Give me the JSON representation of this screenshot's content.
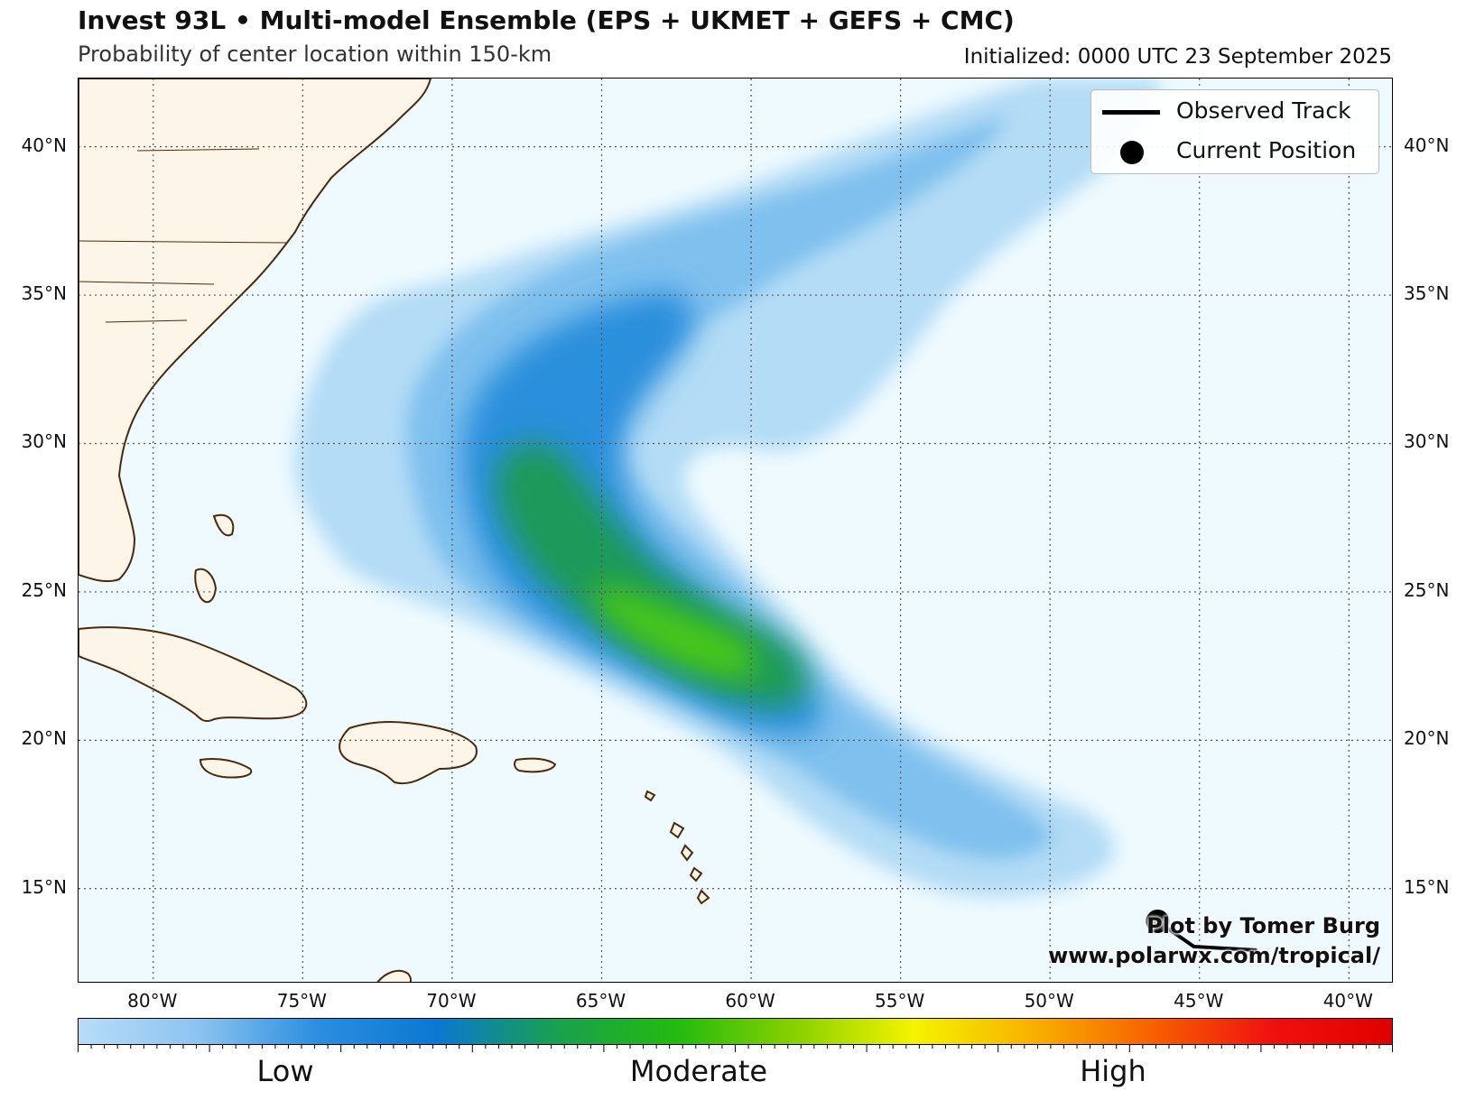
{
  "title": "Invest 93L • Multi-model Ensemble (EPS + UKMET + GEFS + CMC)",
  "subtitle": "Probability of center location within 150-km",
  "initialized": "Initialized: 0000 UTC 23 September 2025",
  "legend": {
    "observed_track": "Observed Track",
    "current_position": "Current Position"
  },
  "credit": {
    "line1": "Plot by Tomer Burg",
    "line2": "www.polarwx.com/tropical/"
  },
  "map": {
    "lon_range": [
      -82.5,
      -38.5
    ],
    "lat_range": [
      11.8,
      42.3
    ],
    "lat_ticks": [
      "15°N",
      "20°N",
      "25°N",
      "30°N",
      "35°N",
      "40°N"
    ],
    "lon_ticks": [
      "80°W",
      "75°W",
      "70°W",
      "65°W",
      "60°W",
      "55°W",
      "50°W",
      "45°W",
      "40°W"
    ],
    "current_position": {
      "lon": -46.4,
      "lat": 13.9
    },
    "colors": {
      "ocean": "#eefaff",
      "land": "#fdf5e8",
      "coast": "#4a2a0a",
      "grid": "#555555"
    }
  },
  "colorbar": {
    "labels": [
      "Low",
      "Moderate",
      "High"
    ],
    "stops": [
      "#b8dcf8",
      "#8cc4f0",
      "#2b8ee0",
      "#0a78d2",
      "#1aa050",
      "#22bb10",
      "#88d000",
      "#f4f400",
      "#f8b000",
      "#f86000",
      "#f01010",
      "#e00000"
    ]
  }
}
